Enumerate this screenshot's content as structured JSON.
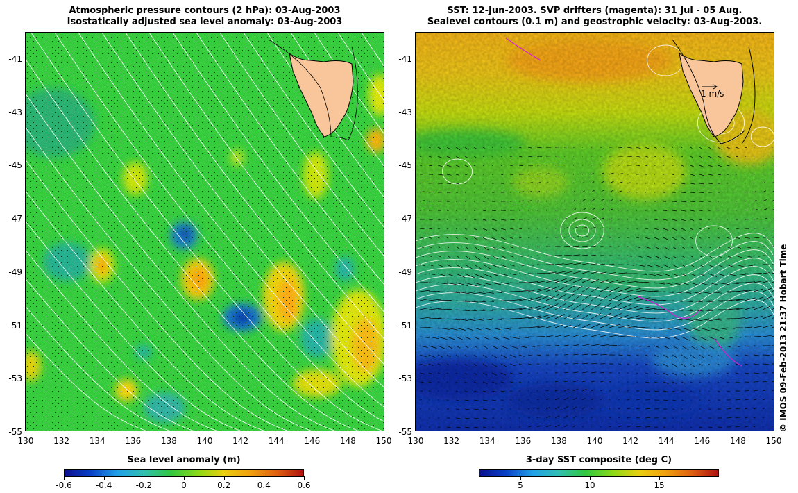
{
  "left_panel": {
    "title_line1": "Atmospheric pressure contours (2 hPa): 03-Aug-2003",
    "title_line2": "Isostatically adjusted sea level anomaly: 03-Aug-2003",
    "colorbar": {
      "title": "Sea level anomaly (m)",
      "ticks": [
        "-0.6",
        "-0.4",
        "-0.2",
        "0",
        "0.2",
        "0.4",
        "0.6"
      ]
    }
  },
  "right_panel": {
    "title_line1": "SST: 12-Jun-2003. SVP drifters (magenta): 31 Jul - 05 Aug.",
    "title_line2": "Sealevel contours (0.1 m) and geostrophic velocity: 03-Aug-2003.",
    "scale_label": "1 m/s",
    "colorbar": {
      "title": "3-day SST composite (deg C)",
      "ticks": [
        "5",
        "10",
        "15"
      ]
    }
  },
  "axes": {
    "x_ticks": [
      "130",
      "132",
      "134",
      "136",
      "138",
      "140",
      "142",
      "144",
      "146",
      "148",
      "150"
    ],
    "y_ticks": [
      "-41",
      "-43",
      "-45",
      "-47",
      "-49",
      "-51",
      "-53",
      "-55"
    ]
  },
  "credit": "© IMOS 09-Feb-2013 21:37 Hobart Time",
  "colors": {
    "land": "#f8c69a",
    "ocean_green": "#30c840",
    "contour": "#ffffff"
  }
}
